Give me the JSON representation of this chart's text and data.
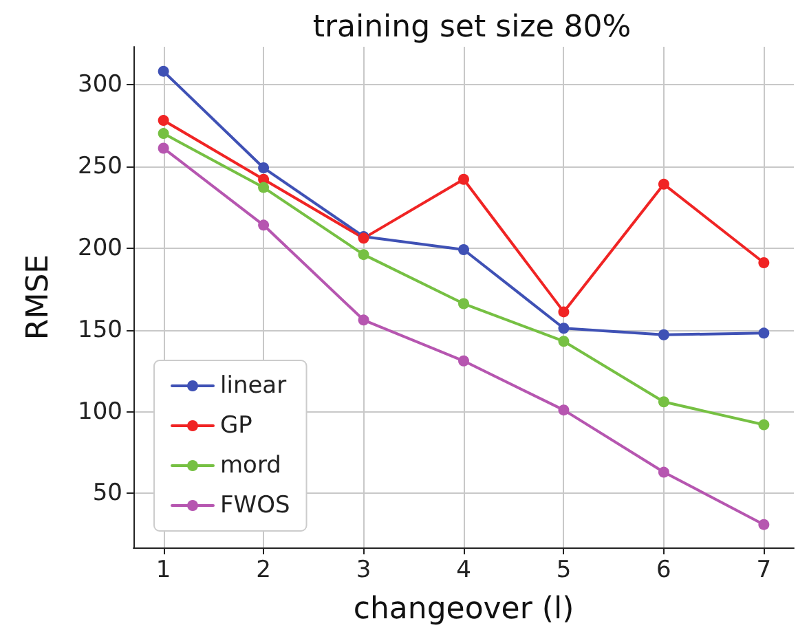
{
  "chart_data": {
    "type": "line",
    "title": "training set size 80%",
    "xlabel": "changeover (l)",
    "ylabel": "RMSE",
    "x": [
      1,
      2,
      3,
      4,
      5,
      6,
      7
    ],
    "series": [
      {
        "name": "linear",
        "color": "#3f51b5",
        "values": [
          308,
          249,
          207,
          199,
          151,
          147,
          148
        ]
      },
      {
        "name": "GP",
        "color": "#f02424",
        "values": [
          278,
          242,
          206,
          242,
          161,
          239,
          191
        ]
      },
      {
        "name": "mord",
        "color": "#76c043",
        "values": [
          270,
          237,
          196,
          166,
          143,
          106,
          92
        ]
      },
      {
        "name": "FWOS",
        "color": "#b656b0",
        "values": [
          261,
          214,
          156,
          131,
          101,
          63,
          31
        ]
      }
    ],
    "xlim": [
      0.7,
      7.3
    ],
    "xticks": [
      1,
      2,
      3,
      4,
      5,
      6,
      7
    ],
    "ylim": [
      17,
      323
    ],
    "yticks": [
      50,
      100,
      150,
      200,
      250,
      300
    ],
    "grid": true,
    "legend": "bottom left",
    "marker": "circle",
    "line_style": "solid"
  }
}
